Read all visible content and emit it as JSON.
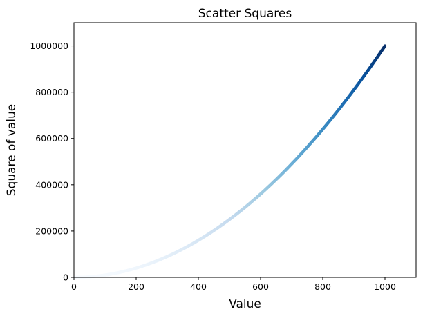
{
  "chart_data": {
    "type": "scatter",
    "title": "Scatter Squares",
    "xlabel": "Value",
    "ylabel": "Square of value",
    "xlim": [
      0,
      1100
    ],
    "ylim": [
      0,
      1100000
    ],
    "x_ticks": [
      0,
      200,
      400,
      600,
      800,
      1000
    ],
    "y_ticks": [
      0,
      200000,
      400000,
      600000,
      800000,
      1000000
    ],
    "x_tick_labels": [
      "0",
      "200",
      "400",
      "600",
      "800",
      "1000"
    ],
    "y_tick_labels": [
      "0",
      "200000",
      "400000",
      "600000",
      "800000",
      "1000000"
    ],
    "series": [
      {
        "x_range": [
          1,
          1000
        ],
        "x_step": 1,
        "y_formula": "x^2",
        "colormap": "Blues",
        "color_by": "y",
        "color_stops": [
          "#f7fbff",
          "#deebf7",
          "#c6dbef",
          "#9ecae1",
          "#6baed6",
          "#4292c6",
          "#2171b5",
          "#08519c",
          "#08306b"
        ]
      }
    ],
    "grid": false,
    "legend": "none"
  }
}
